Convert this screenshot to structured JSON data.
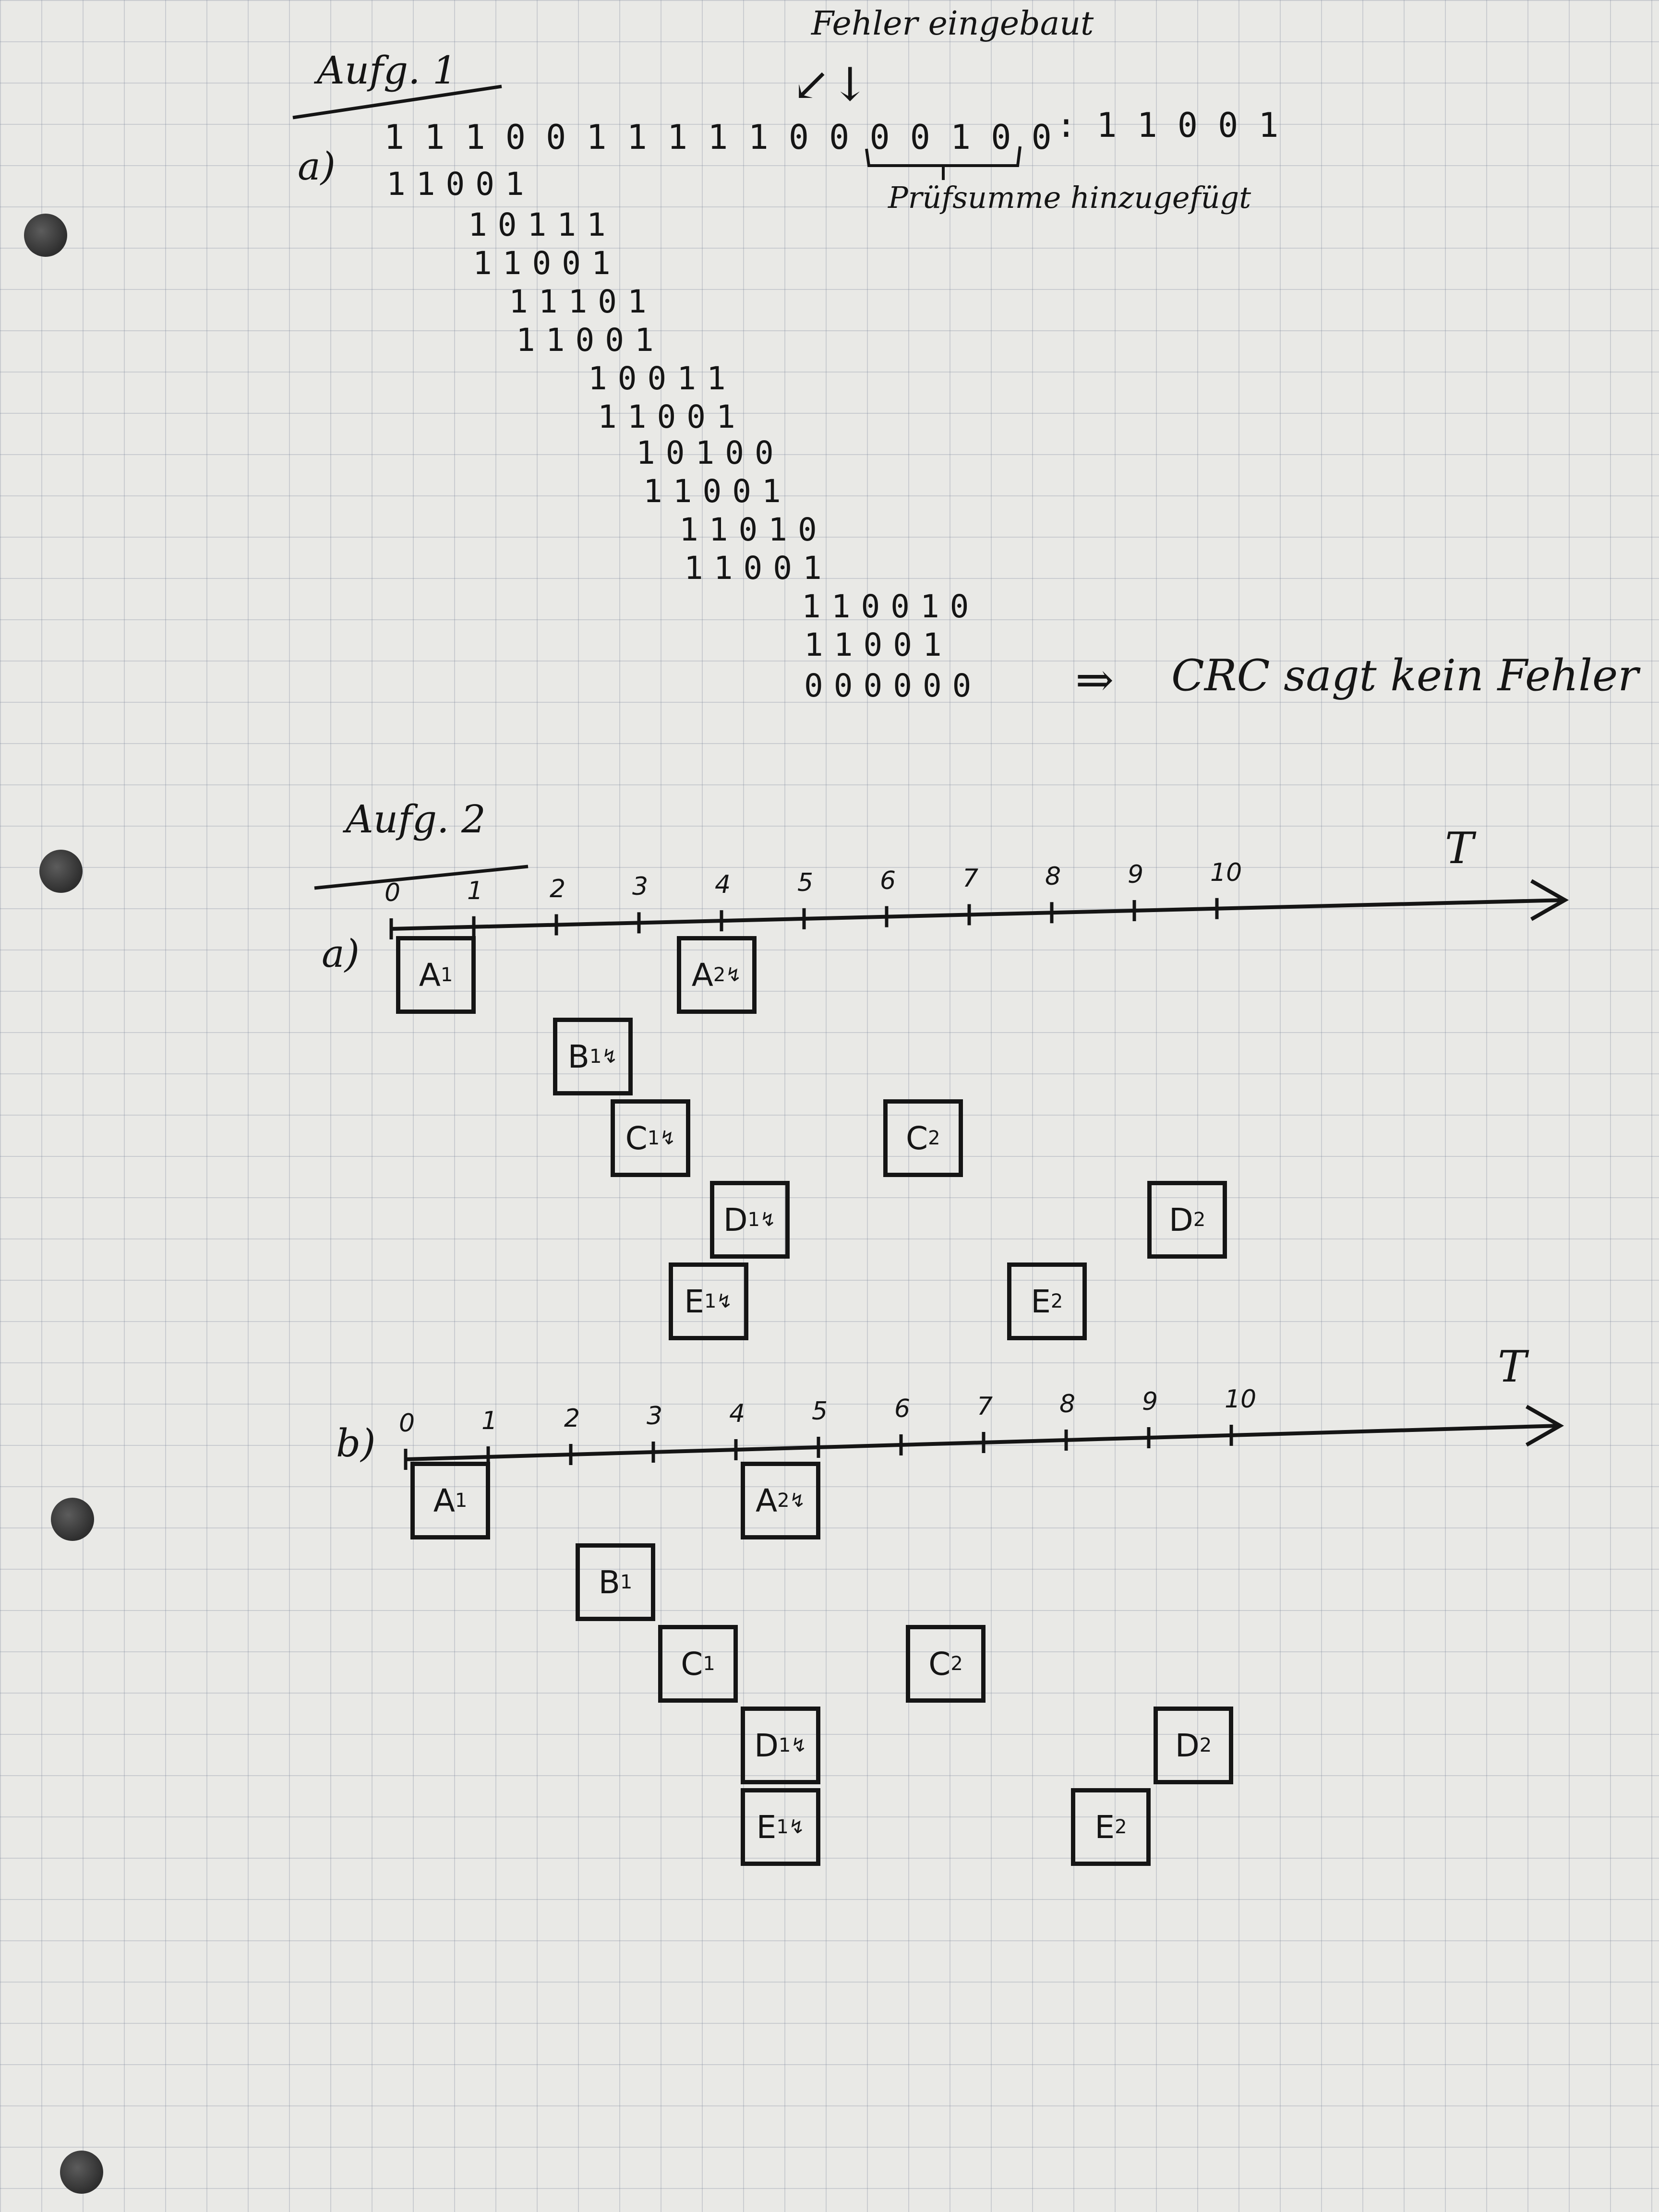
{
  "task1": {
    "heading": "Aufg. 1",
    "part": "a)",
    "arrow_note": "Fehler eingebaut",
    "arrow_glyph": "↙↓",
    "dividend": "1 1 1 0 0 1 1 1 1 1 0 0 0 0 1 0 0",
    "divisor": ": 1 1 0 0 1",
    "checksum_note": "Prüfsumme hinzugefügt",
    "rows": [
      "11001",
      "10111",
      "11001",
      "11101",
      "11001",
      "10011",
      "11001",
      "10100",
      "11001",
      "11010",
      "11001",
      "110010",
      "11001",
      "000000"
    ],
    "result_arrow": "⇒",
    "conclusion": "CRC sagt kein Fehler"
  },
  "task2": {
    "heading": "Aufg. 2",
    "axis_label": "T",
    "ticks": [
      "0",
      "1",
      "2",
      "3",
      "4",
      "5",
      "6",
      "7",
      "8",
      "9",
      "10"
    ],
    "part_a": {
      "label": "a)",
      "boxes": [
        {
          "name": "A",
          "sub": "1",
          "flash": "",
          "start": 0,
          "row": 0
        },
        {
          "name": "A",
          "sub": "2",
          "flash": "↯",
          "start": 3.4,
          "row": 0
        },
        {
          "name": "B",
          "sub": "1",
          "flash": "↯",
          "start": 1.9,
          "row": 1
        },
        {
          "name": "C",
          "sub": "1",
          "flash": "↯",
          "start": 2.6,
          "row": 2
        },
        {
          "name": "C",
          "sub": "2",
          "flash": "",
          "start": 5.9,
          "row": 2
        },
        {
          "name": "D",
          "sub": "1",
          "flash": "↯",
          "start": 3.8,
          "row": 3
        },
        {
          "name": "D",
          "sub": "2",
          "flash": "",
          "start": 9.1,
          "row": 3
        },
        {
          "name": "E",
          "sub": "1",
          "flash": "↯",
          "start": 3.3,
          "row": 4
        },
        {
          "name": "E",
          "sub": "2",
          "flash": "",
          "start": 7.4,
          "row": 4
        }
      ]
    },
    "part_b": {
      "label": "b)",
      "boxes": [
        {
          "name": "A",
          "sub": "1",
          "flash": "",
          "start": 0,
          "row": 0
        },
        {
          "name": "A",
          "sub": "2",
          "flash": "↯",
          "start": 4,
          "row": 0
        },
        {
          "name": "B",
          "sub": "1",
          "flash": "",
          "start": 2,
          "row": 1
        },
        {
          "name": "C",
          "sub": "1",
          "flash": "",
          "start": 3,
          "row": 2
        },
        {
          "name": "C",
          "sub": "2",
          "flash": "",
          "start": 6,
          "row": 2
        },
        {
          "name": "D",
          "sub": "1",
          "flash": "↯",
          "start": 4,
          "row": 3
        },
        {
          "name": "D",
          "sub": "2",
          "flash": "",
          "start": 9,
          "row": 3
        },
        {
          "name": "E",
          "sub": "1",
          "flash": "↯",
          "start": 4,
          "row": 4
        },
        {
          "name": "E",
          "sub": "2",
          "flash": "",
          "start": 8,
          "row": 4
        }
      ]
    }
  }
}
